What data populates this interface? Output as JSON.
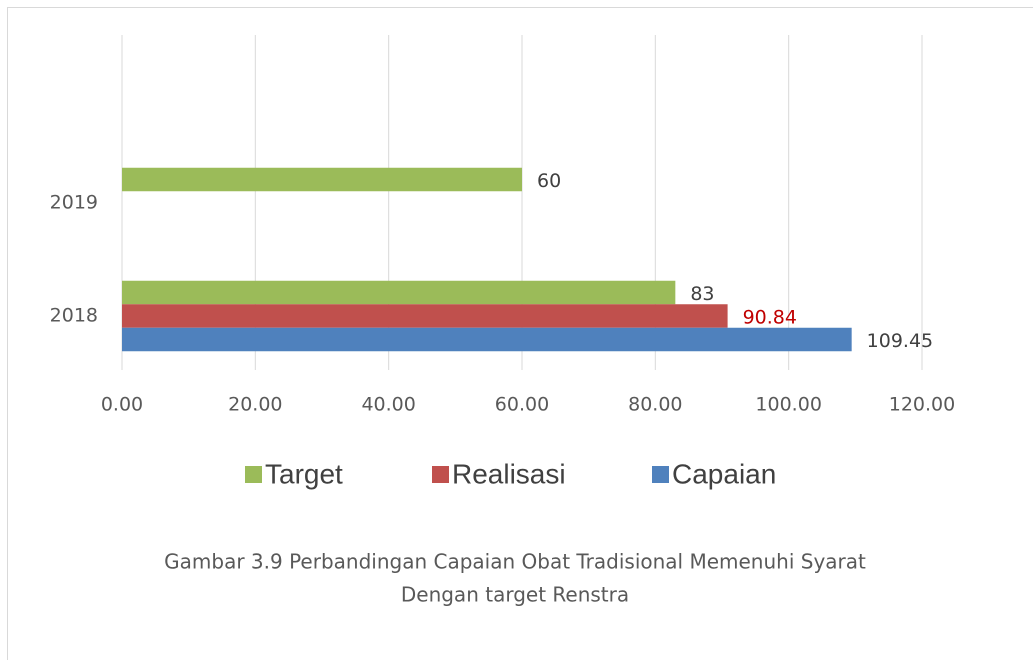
{
  "chart_data": {
    "type": "hbar",
    "categories": [
      "2018",
      "2019"
    ],
    "series": [
      {
        "name": "Target",
        "color": "#9bbb59",
        "label_color": "#404040",
        "values": [
          83,
          60
        ]
      },
      {
        "name": "Realisasi",
        "color": "#c0504d",
        "label_color": "#c00000",
        "values": [
          90.84,
          null
        ]
      },
      {
        "name": "Capaian",
        "color": "#4f81bd",
        "label_color": "#404040",
        "values": [
          109.45,
          null
        ]
      }
    ],
    "xlim": [
      0,
      120
    ],
    "xticks": [
      {
        "value": 0,
        "label": "0.00"
      },
      {
        "value": 20,
        "label": "20.00"
      },
      {
        "value": 40,
        "label": "40.00"
      },
      {
        "value": 60,
        "label": "60.00"
      },
      {
        "value": 80,
        "label": "80.00"
      },
      {
        "value": 100,
        "label": "100.00"
      },
      {
        "value": 120,
        "label": "120.00"
      }
    ],
    "grid": true,
    "legend": "bottom",
    "caption": [
      "Gambar 3.9  Perbandingan Capaian Obat Tradisional Memenuhi Syarat",
      "Dengan target Renstra"
    ]
  }
}
